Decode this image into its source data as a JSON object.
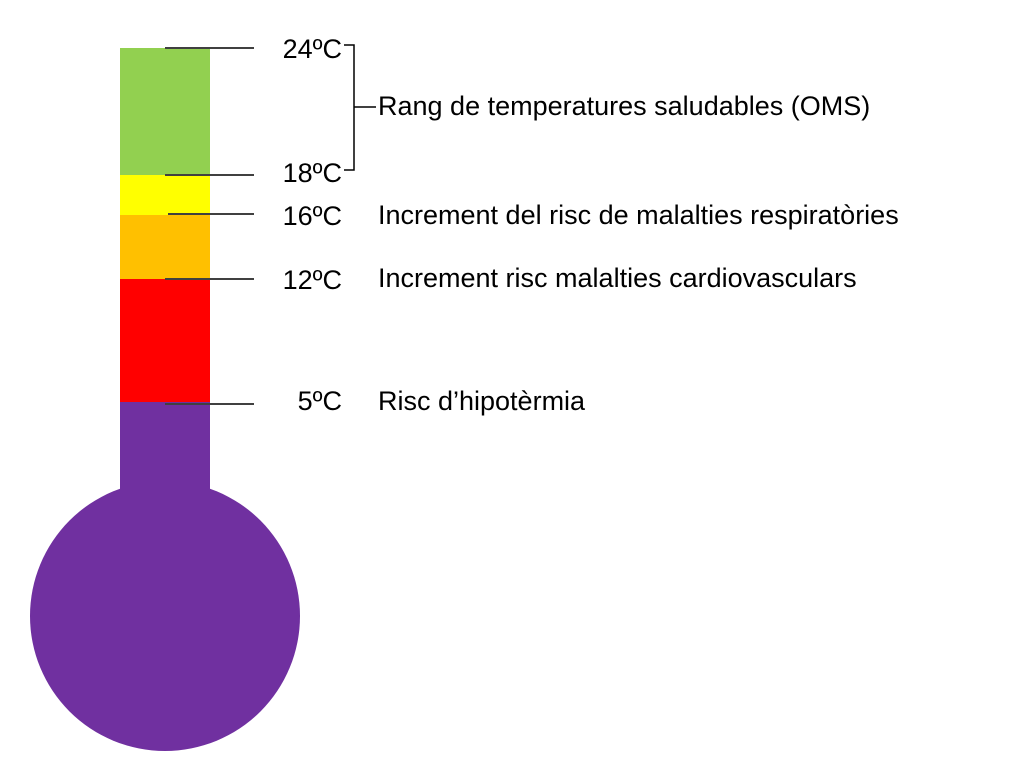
{
  "colors": {
    "green": "#92D050",
    "yellow": "#FFFF00",
    "orange": "#FFC000",
    "red": "#FF0000",
    "purple": "#7030A0",
    "tick": "#404040"
  },
  "thermometer": {
    "bands": [
      {
        "name": "healthy-band",
        "from": "18ºC",
        "to": "24ºC",
        "color": "#92D050"
      },
      {
        "name": "respiratory-band",
        "from": "16ºC",
        "to": "18ºC",
        "color": "#FFFF00"
      },
      {
        "name": "cardio-band",
        "from": "12ºC",
        "to": "16ºC",
        "color": "#FFC000"
      },
      {
        "name": "warning-band",
        "from": "5ºC",
        "to": "12ºC",
        "color": "#FF0000"
      },
      {
        "name": "hypothermia-band",
        "from": "",
        "to": "5ºC",
        "color": "#7030A0"
      }
    ]
  },
  "labels": {
    "t24": "24ºC",
    "t18": "18ºC",
    "t16": "16ºC",
    "t12": "12ºC",
    "t5": "5ºC",
    "healthy": "Rang de temperatures saludables (OMS)",
    "respiratory": "Increment del risc de malalties respiratòries",
    "cardio": "Increment risc malalties cardiovasculars",
    "hypothermia": "Risc d’hipotèrmia"
  }
}
